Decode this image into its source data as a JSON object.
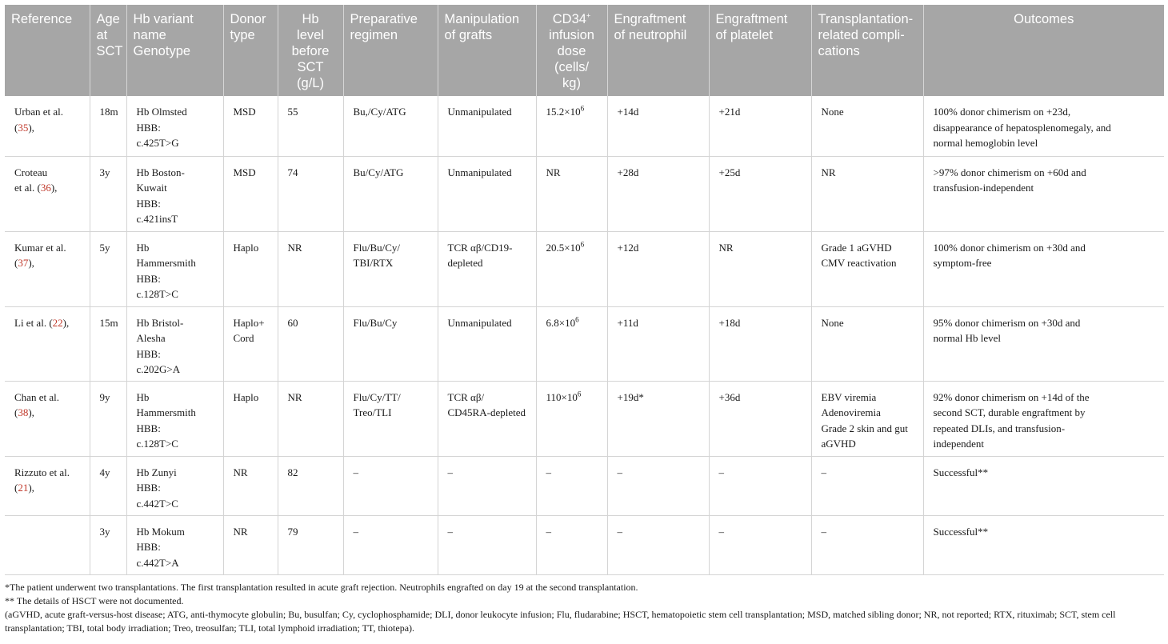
{
  "headers": [
    "Reference",
    "Age at SCT",
    "Hb variant name Genotype",
    "Donor type",
    "Hb level before SCT (g/L)",
    "Preparative regimen",
    "Manipulation of grafts",
    "CD34+ infusion dose (cells/ kg)",
    "Engraftment of neutrophil",
    "Engraftment of platelet",
    "Transplantation-related compli-cations",
    "Outcomes"
  ],
  "header_lines": {
    "h0": "Reference",
    "h1": "Age\nat\nSCT",
    "h2": "Hb variant\nname\nGenotype",
    "h3": "Donor\ntype",
    "h4": "Hb\nlevel\nbefore\nSCT\n(g/L)",
    "h5": "Preparative\nregimen",
    "h6": "Manipulation\nof grafts",
    "h7a": "CD34",
    "h7sup": "+",
    "h7b": "\ninfusion\ndose\n(cells/\nkg)",
    "h8": "Engraftment\nof neutrophil",
    "h9": "Engraftment\nof platelet",
    "h10": "Transplantation-\nrelated compli-\ncations",
    "h11": "Outcomes"
  },
  "rows": [
    {
      "ref_text": "Urban et al.\n(",
      "ref_num": "35",
      "ref_tail": "),",
      "age": "18m",
      "variant": "Hb Olmsted\nHBB:\nc.425T>G",
      "donor": "MSD",
      "hb": "55",
      "regimen": "Bu,/Cy/ATG",
      "manipulation": "Unmanipulated",
      "dose_base": "15.2×10",
      "dose_exp": "6",
      "neutrophil": "+14d",
      "platelet": "+21d",
      "complications": "None",
      "outcome": "100% donor chimerism on +23d,\ndisappearance of hepatosplenomegaly, and\nnormal hemoglobin level"
    },
    {
      "ref_text": "Croteau\net al. (",
      "ref_num": "36",
      "ref_tail": "),",
      "age": "3y",
      "variant": "Hb Boston-\nKuwait\nHBB:\nc.421insT",
      "donor": "MSD",
      "hb": "74",
      "regimen": "Bu/Cy/ATG",
      "manipulation": "Unmanipulated",
      "dose_base": "NR",
      "dose_exp": "",
      "neutrophil": "+28d",
      "platelet": "+25d",
      "complications": "NR",
      "outcome": ">97% donor chimerism on +60d and\ntransfusion-independent"
    },
    {
      "ref_text": "Kumar et al.\n(",
      "ref_num": "37",
      "ref_tail": "),",
      "age": "5y",
      "variant": "Hb\nHammersmith\nHBB:\nc.128T>C",
      "donor": "Haplo",
      "hb": "NR",
      "regimen": "Flu/Bu/Cy/\nTBI/RTX",
      "manipulation": "TCR αβ/CD19-\ndepleted",
      "dose_base": "20.5×10",
      "dose_exp": "6",
      "neutrophil": "+12d",
      "platelet": "NR",
      "complications": "Grade 1 aGVHD\nCMV reactivation",
      "outcome": "100% donor chimerism on +30d and\nsymptom-free"
    },
    {
      "ref_text": "Li et al. (",
      "ref_num": "22",
      "ref_tail": "),",
      "age": "15m",
      "variant": "Hb Bristol-\nAlesha\nHBB:\nc.202G>A",
      "donor": "Haplo+\nCord",
      "hb": "60",
      "regimen": "Flu/Bu/Cy",
      "manipulation": "Unmanipulated",
      "dose_base": "6.8×10",
      "dose_exp": "6",
      "neutrophil": "+11d",
      "platelet": "+18d",
      "complications": "None",
      "outcome": "95% donor chimerism on +30d and\nnormal Hb level"
    },
    {
      "ref_text": "Chan et al.\n(",
      "ref_num": "38",
      "ref_tail": "),",
      "age": "9y",
      "variant": "Hb\nHammersmith\nHBB:\nc.128T>C",
      "donor": "Haplo",
      "hb": "NR",
      "regimen": "Flu/Cy/TT/\nTreo/TLI",
      "manipulation": "TCR αβ/\nCD45RA-depleted",
      "dose_base": "110×10",
      "dose_exp": "6",
      "neutrophil": "+19d*",
      "platelet": "+36d",
      "complications": "EBV viremia\nAdenoviremia\nGrade 2 skin and gut\naGVHD",
      "outcome": "92% donor chimerism on +14d of the\nsecond SCT, durable engraftment by\nrepeated DLIs, and transfusion-\nindependent"
    },
    {
      "ref_text": "Rizzuto et al.\n(",
      "ref_num": "21",
      "ref_tail": "),",
      "age": "4y",
      "variant": "Hb Zunyi\nHBB:\nc.442T>C",
      "donor": "NR",
      "hb": "82",
      "regimen": "–",
      "manipulation": "–",
      "dose_base": "–",
      "dose_exp": "",
      "neutrophil": "–",
      "platelet": "–",
      "complications": "–",
      "outcome": "Successful**"
    },
    {
      "ref_text": "",
      "ref_num": "",
      "ref_tail": "",
      "age": "3y",
      "variant": "Hb Mokum\nHBB:\nc.442T>A",
      "donor": "NR",
      "hb": "79",
      "regimen": "–",
      "manipulation": "–",
      "dose_base": "–",
      "dose_exp": "",
      "neutrophil": "–",
      "platelet": "–",
      "complications": "–",
      "outcome": "Successful**"
    }
  ],
  "footnotes": {
    "note1": "*The patient underwent two transplantations. The first transplantation resulted in acute graft rejection. Neutrophils engrafted on day 19 at the second transplantation.",
    "note2": "** The details of HSCT were not documented.",
    "abbreviations": "(aGVHD, acute graft-versus-host disease; ATG, anti-thymocyte globulin; Bu, busulfan; Cy, cyclophosphamide; DLI, donor leukocyte infusion; Flu, fludarabine; HSCT, hematopoietic stem cell transplantation; MSD, matched sibling donor; NR, not reported; RTX, rituximab; SCT, stem cell transplantation; TBI, total body irradiation; Treo, treosulfan; TLI, total lymphoid irradiation; TT, thiotepa)."
  },
  "colors": {
    "header_bg": "#a6a6a6",
    "header_text": "#ffffff",
    "reference_link": "#c0392b",
    "grid": "#d4d4d4"
  }
}
